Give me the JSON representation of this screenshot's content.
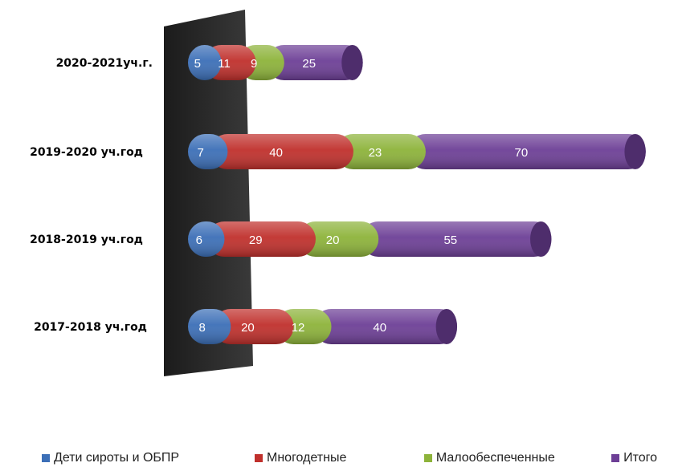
{
  "chart_data": {
    "type": "bar",
    "orientation": "horizontal",
    "stacked": true,
    "categories": [
      "2020-2021уч.г.",
      "2019-2020 уч.год",
      "2018-2019 уч.год",
      "2017-2018 уч.год"
    ],
    "series": [
      {
        "name": "Дети сироты и ОБПР",
        "values": [
          5,
          7,
          6,
          8
        ],
        "color": "#3c6fb7"
      },
      {
        "name": "Многодетные",
        "values": [
          11,
          40,
          29,
          20
        ],
        "color": "#c0302c"
      },
      {
        "name": "Малообеспеченные",
        "values": [
          9,
          23,
          20,
          12
        ],
        "color": "#8db33a"
      },
      {
        "name": "Итого",
        "values": [
          25,
          70,
          55,
          40
        ],
        "color": "#6d3f96"
      }
    ],
    "xlim": [
      0,
      140
    ],
    "grid": false,
    "legend_position": "bottom",
    "title": "",
    "xlabel": "",
    "ylabel": ""
  }
}
